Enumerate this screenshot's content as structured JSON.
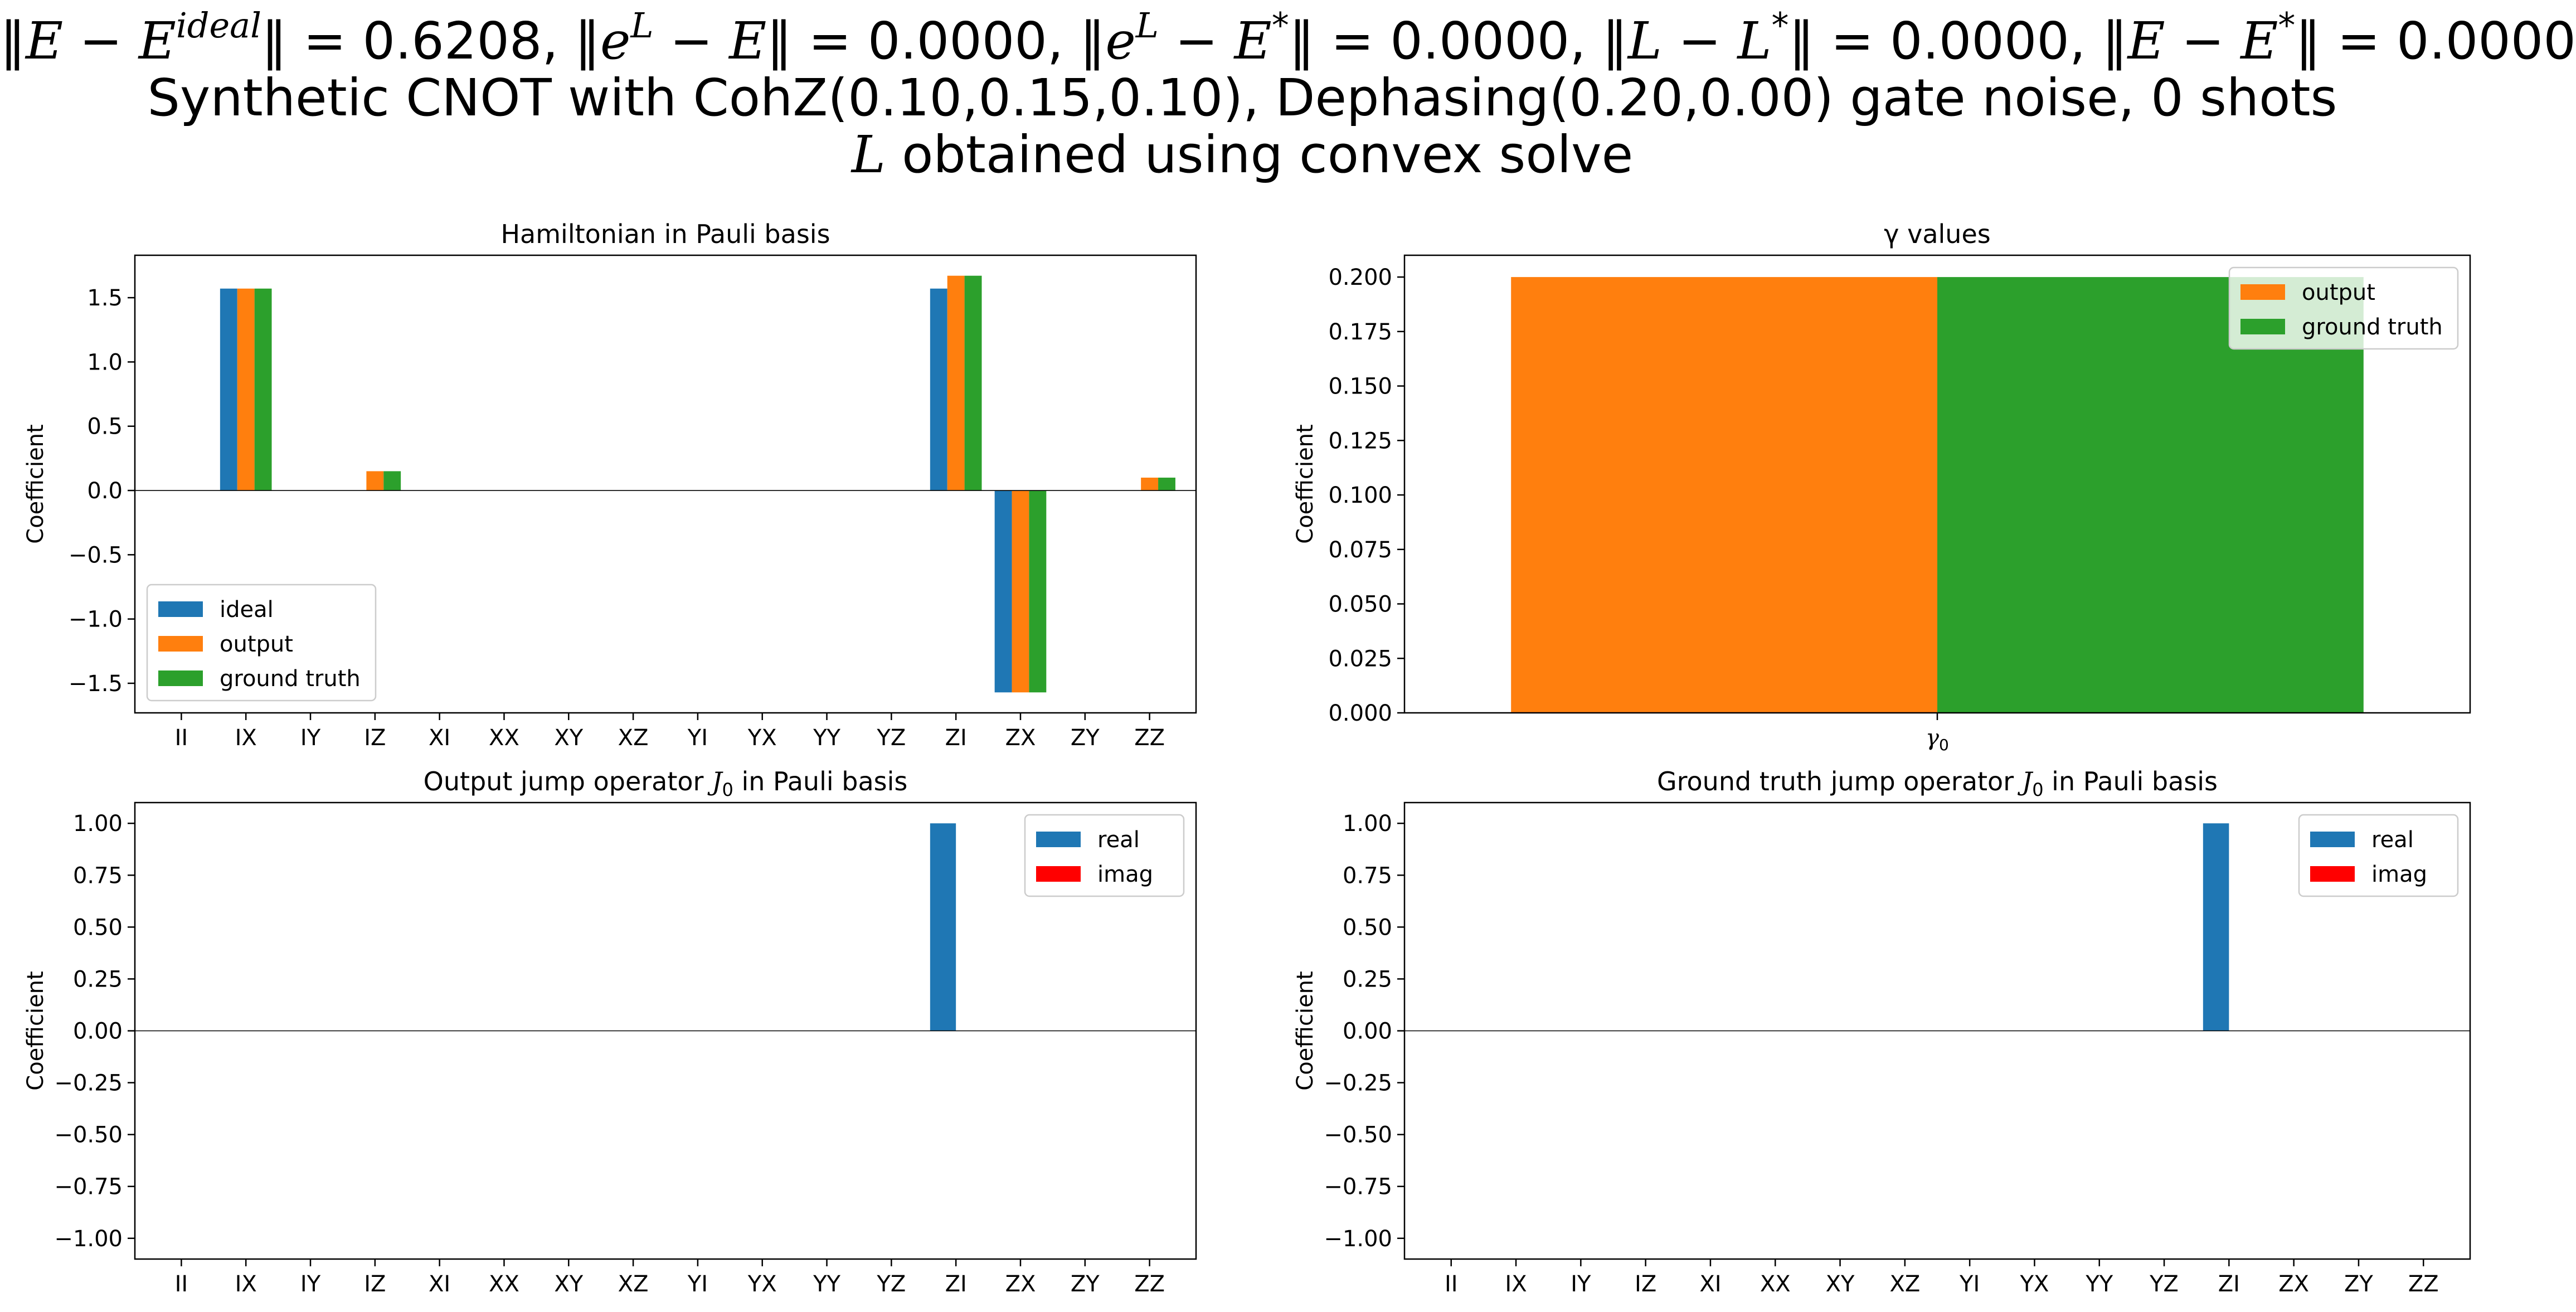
{
  "figure": {
    "title_lines": [
      "‖E − E^ideal‖ = 0.6208, ‖e^L − E‖ = 0.0000, ‖e^L − E*‖ = 0.0000, ‖L − L*‖ = 0.0000, ‖E − E*‖ = 0.0000",
      "Synthetic CNOT with CohZ(0.10,0.15,0.10), Dephasing(0.20,0.00) gate noise, 0 shots",
      "L obtained using convex solve"
    ],
    "norms": [
      "0.6208",
      "0.0000",
      "0.0000",
      "0.0000",
      "0.0000"
    ],
    "subtitle": "Synthetic CNOT with CohZ(0.10,0.15,0.10), Dephasing(0.20,0.00) gate noise, 0 shots",
    "method_line": "obtained using convex solve",
    "method_symbol": "L"
  },
  "colors": {
    "ideal": "#1f77b4",
    "output": "#ff7f0e",
    "ground_truth": "#2ca02c",
    "real": "#1f77b4",
    "imag": "#ff0000"
  },
  "chart_data": [
    {
      "id": "hamiltonian",
      "type": "bar",
      "title": "Hamiltonian in Pauli basis",
      "xlabel": "",
      "ylabel": "Coefficient",
      "categories": [
        "II",
        "IX",
        "IY",
        "IZ",
        "XI",
        "XX",
        "XY",
        "XZ",
        "YI",
        "YX",
        "YY",
        "YZ",
        "ZI",
        "ZX",
        "ZY",
        "ZZ"
      ],
      "series": [
        {
          "name": "ideal",
          "color": "#1f77b4",
          "values": [
            0,
            1.5708,
            0,
            0,
            0,
            0,
            0,
            0,
            0,
            0,
            0,
            0,
            1.5708,
            -1.5708,
            0,
            0
          ]
        },
        {
          "name": "output",
          "color": "#ff7f0e",
          "values": [
            0,
            1.5708,
            0,
            0.15,
            0,
            0,
            0,
            0,
            0,
            0,
            0,
            0,
            1.6708,
            -1.5708,
            0,
            0.1
          ]
        },
        {
          "name": "ground truth",
          "color": "#2ca02c",
          "values": [
            0,
            1.5708,
            0,
            0.15,
            0,
            0,
            0,
            0,
            0,
            0,
            0,
            0,
            1.6708,
            -1.5708,
            0,
            0.1
          ]
        }
      ],
      "ylim": [
        -1.73,
        1.83
      ],
      "yticks": [
        -1.5,
        -1.0,
        -0.5,
        0.0,
        0.5,
        1.0,
        1.5
      ],
      "yticklabels": [
        "−1.5",
        "−1.0",
        "−0.5",
        "0.0",
        "0.5",
        "1.0",
        "1.5"
      ],
      "legend": [
        "ideal",
        "output",
        "ground truth"
      ],
      "legend_loc": "lower-left",
      "grid": false
    },
    {
      "id": "gamma",
      "type": "bar",
      "title": "γ values",
      "xlabel": "",
      "ylabel": "Coefficient",
      "categories": [
        "γ0"
      ],
      "series": [
        {
          "name": "output",
          "color": "#ff7f0e",
          "values": [
            0.2
          ]
        },
        {
          "name": "ground truth",
          "color": "#2ca02c",
          "values": [
            0.2
          ]
        }
      ],
      "ylim": [
        0.0,
        0.21
      ],
      "yticks": [
        0.0,
        0.025,
        0.05,
        0.075,
        0.1,
        0.125,
        0.15,
        0.175,
        0.2
      ],
      "yticklabels": [
        "0.000",
        "0.025",
        "0.050",
        "0.075",
        "0.100",
        "0.125",
        "0.150",
        "0.175",
        "0.200"
      ],
      "legend": [
        "output",
        "ground truth"
      ],
      "legend_loc": "upper-right",
      "grid": false
    },
    {
      "id": "output_jump",
      "type": "bar",
      "title": "Output jump operator J0 in Pauli basis",
      "xlabel": "",
      "ylabel": "Coefficient",
      "categories": [
        "II",
        "IX",
        "IY",
        "IZ",
        "XI",
        "XX",
        "XY",
        "XZ",
        "YI",
        "YX",
        "YY",
        "YZ",
        "ZI",
        "ZX",
        "ZY",
        "ZZ"
      ],
      "series": [
        {
          "name": "real",
          "color": "#1f77b4",
          "values": [
            0,
            0,
            0,
            0,
            0,
            0,
            0,
            0,
            0,
            0,
            0,
            0,
            1.0,
            0,
            0,
            0
          ]
        },
        {
          "name": "imag",
          "color": "#ff0000",
          "values": [
            0,
            0,
            0,
            0,
            0,
            0,
            0,
            0,
            0,
            0,
            0,
            0,
            0,
            0,
            0,
            0
          ]
        }
      ],
      "ylim": [
        -1.1,
        1.1
      ],
      "yticks": [
        -1.0,
        -0.75,
        -0.5,
        -0.25,
        0.0,
        0.25,
        0.5,
        0.75,
        1.0
      ],
      "yticklabels": [
        "−1.00",
        "−0.75",
        "−0.50",
        "−0.25",
        "0.00",
        "0.25",
        "0.50",
        "0.75",
        "1.00"
      ],
      "legend": [
        "real",
        "imag"
      ],
      "legend_loc": "upper-right",
      "grid": false
    },
    {
      "id": "ground_truth_jump",
      "type": "bar",
      "title": "Ground truth jump operator J0 in Pauli basis",
      "xlabel": "",
      "ylabel": "Coefficient",
      "categories": [
        "II",
        "IX",
        "IY",
        "IZ",
        "XI",
        "XX",
        "XY",
        "XZ",
        "YI",
        "YX",
        "YY",
        "YZ",
        "ZI",
        "ZX",
        "ZY",
        "ZZ"
      ],
      "series": [
        {
          "name": "real",
          "color": "#1f77b4",
          "values": [
            0,
            0,
            0,
            0,
            0,
            0,
            0,
            0,
            0,
            0,
            0,
            0,
            1.0,
            0,
            0,
            0
          ]
        },
        {
          "name": "imag",
          "color": "#ff0000",
          "values": [
            0,
            0,
            0,
            0,
            0,
            0,
            0,
            0,
            0,
            0,
            0,
            0,
            0,
            0,
            0,
            0
          ]
        }
      ],
      "ylim": [
        -1.1,
        1.1
      ],
      "yticks": [
        -1.0,
        -0.75,
        -0.5,
        -0.25,
        0.0,
        0.25,
        0.5,
        0.75,
        1.0
      ],
      "yticklabels": [
        "−1.00",
        "−0.75",
        "−0.50",
        "−0.25",
        "0.00",
        "0.25",
        "0.50",
        "0.75",
        "1.00"
      ],
      "legend": [
        "real",
        "imag"
      ],
      "legend_loc": "upper-right",
      "grid": false
    }
  ]
}
